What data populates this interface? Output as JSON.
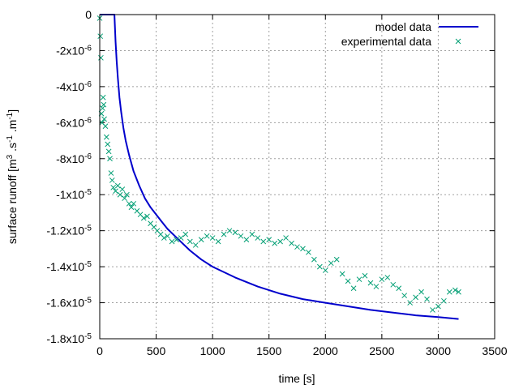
{
  "chart_data": {
    "type": "line",
    "title": "",
    "xlabel": "time [s]",
    "ylabel": {
      "base1": "surface runoff [m",
      "sup1": "3",
      "base2": " .s",
      "sup2": "-1",
      "base3": " .m",
      "sup3": "-1",
      "base4": "]"
    },
    "xlim": [
      0,
      3500
    ],
    "ylim": [
      -1.8e-05,
      0
    ],
    "grid": true,
    "legend_position": "top-right",
    "x_ticks": [
      {
        "value": 0,
        "label": "0"
      },
      {
        "value": 500,
        "label": "500"
      },
      {
        "value": 1000,
        "label": "1000"
      },
      {
        "value": 1500,
        "label": "1500"
      },
      {
        "value": 2000,
        "label": "2000"
      },
      {
        "value": 2500,
        "label": "2500"
      },
      {
        "value": 3000,
        "label": "3000"
      },
      {
        "value": 3500,
        "label": "3500"
      }
    ],
    "y_ticks": [
      {
        "value": 0,
        "mant": "0",
        "exp": ""
      },
      {
        "value": -2e-06,
        "mant": "-2x10",
        "exp": "-6"
      },
      {
        "value": -4e-06,
        "mant": "-4x10",
        "exp": "-6"
      },
      {
        "value": -6e-06,
        "mant": "-6x10",
        "exp": "-6"
      },
      {
        "value": -8e-06,
        "mant": "-8x10",
        "exp": "-6"
      },
      {
        "value": -1e-05,
        "mant": "-1x10",
        "exp": "-5"
      },
      {
        "value": -1.2e-05,
        "mant": "-1.2x10",
        "exp": "-5"
      },
      {
        "value": -1.4e-05,
        "mant": "-1.4x10",
        "exp": "-5"
      },
      {
        "value": -1.6e-05,
        "mant": "-1.6x10",
        "exp": "-5"
      },
      {
        "value": -1.8e-05,
        "mant": "-1.8x10",
        "exp": "-5"
      }
    ],
    "series": [
      {
        "name": "model data",
        "kind": "line",
        "color": "#0000cc",
        "x": [
          0,
          130,
          140,
          150,
          160,
          175,
          190,
          210,
          230,
          260,
          300,
          350,
          400,
          450,
          500,
          550,
          600,
          700,
          800,
          900,
          1000,
          1200,
          1400,
          1600,
          1800,
          2000,
          2200,
          2400,
          2600,
          2800,
          3000,
          3180
        ],
        "y": [
          0,
          0,
          -1.5e-06,
          -2.6e-06,
          -3.5e-06,
          -4.6e-06,
          -5.4e-06,
          -6.3e-06,
          -7e-06,
          -7.8e-06,
          -8.7e-06,
          -9.5e-06,
          -1.02e-05,
          -1.07e-05,
          -1.11e-05,
          -1.15e-05,
          -1.19e-05,
          -1.25e-05,
          -1.31e-05,
          -1.36e-05,
          -1.4e-05,
          -1.46e-05,
          -1.51e-05,
          -1.55e-05,
          -1.58e-05,
          -1.6e-05,
          -1.62e-05,
          -1.64e-05,
          -1.655e-05,
          -1.67e-05,
          -1.68e-05,
          -1.69e-05
        ]
      },
      {
        "name": "experimental data",
        "kind": "scatter",
        "color": "#009e73",
        "x": [
          0,
          5,
          10,
          15,
          20,
          25,
          30,
          35,
          40,
          50,
          60,
          70,
          80,
          90,
          100,
          110,
          120,
          140,
          160,
          180,
          200,
          220,
          240,
          260,
          280,
          300,
          330,
          360,
          390,
          420,
          450,
          480,
          510,
          540,
          570,
          600,
          640,
          680,
          720,
          760,
          800,
          850,
          900,
          950,
          1000,
          1050,
          1100,
          1150,
          1200,
          1250,
          1300,
          1350,
          1400,
          1450,
          1500,
          1550,
          1600,
          1650,
          1700,
          1750,
          1800,
          1850,
          1900,
          1950,
          2000,
          2050,
          2100,
          2150,
          2200,
          2250,
          2300,
          2350,
          2400,
          2450,
          2500,
          2550,
          2600,
          2650,
          2700,
          2750,
          2800,
          2850,
          2900,
          2950,
          3000,
          3050,
          3100,
          3150,
          3180
        ],
        "y": [
          -2e-07,
          -1.2e-06,
          -2.4e-06,
          -5.5e-06,
          -6e-06,
          -5.2e-06,
          -4.6e-06,
          -5e-06,
          -5.8e-06,
          -6.2e-06,
          -6.8e-06,
          -7.2e-06,
          -7.6e-06,
          -8e-06,
          -8.8e-06,
          -9.2e-06,
          -9.6e-06,
          -9.8e-06,
          -9.5e-06,
          -1e-05,
          -9.7e-06,
          -1.02e-05,
          -1e-05,
          -1.05e-05,
          -1.07e-05,
          -1.05e-05,
          -1.09e-05,
          -1.11e-05,
          -1.13e-05,
          -1.12e-05,
          -1.16e-05,
          -1.18e-05,
          -1.2e-05,
          -1.22e-05,
          -1.24e-05,
          -1.23e-05,
          -1.26e-05,
          -1.25e-05,
          -1.24e-05,
          -1.22e-05,
          -1.26e-05,
          -1.28e-05,
          -1.25e-05,
          -1.23e-05,
          -1.24e-05,
          -1.26e-05,
          -1.22e-05,
          -1.2e-05,
          -1.21e-05,
          -1.23e-05,
          -1.25e-05,
          -1.22e-05,
          -1.24e-05,
          -1.26e-05,
          -1.25e-05,
          -1.27e-05,
          -1.26e-05,
          -1.24e-05,
          -1.27e-05,
          -1.29e-05,
          -1.3e-05,
          -1.32e-05,
          -1.36e-05,
          -1.4e-05,
          -1.42e-05,
          -1.38e-05,
          -1.36e-05,
          -1.44e-05,
          -1.48e-05,
          -1.52e-05,
          -1.47e-05,
          -1.45e-05,
          -1.49e-05,
          -1.51e-05,
          -1.47e-05,
          -1.46e-05,
          -1.5e-05,
          -1.52e-05,
          -1.56e-05,
          -1.6e-05,
          -1.57e-05,
          -1.54e-05,
          -1.58e-05,
          -1.64e-05,
          -1.62e-05,
          -1.59e-05,
          -1.54e-05,
          -1.53e-05,
          -1.54e-05
        ]
      }
    ]
  }
}
